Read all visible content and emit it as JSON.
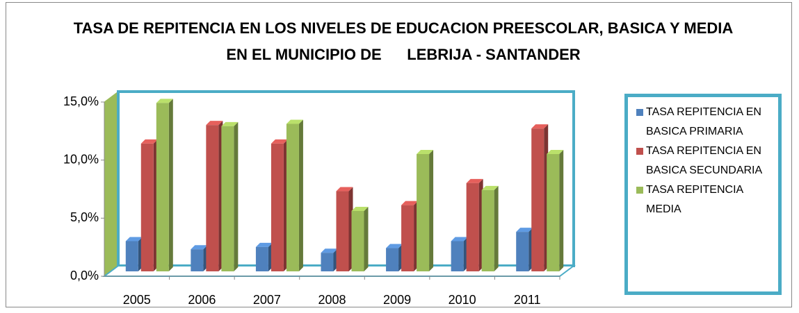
{
  "chart_data": {
    "type": "bar",
    "title": "TASA DE REPITENCIA EN LOS NIVELES DE EDUCACION PREESCOLAR, BASICA Y MEDIA EN EL MUNICIPIO DE      LEBRIJA - SANTANDER",
    "categories": [
      "2005",
      "2006",
      "2007",
      "2008",
      "2009",
      "2010",
      "2011"
    ],
    "series": [
      {
        "name": "TASA REPITENCIA EN BASICA PRIMARIA",
        "color": "#4f81bd",
        "values": [
          2.6,
          1.9,
          2.1,
          1.6,
          2.0,
          2.6,
          3.4
        ]
      },
      {
        "name": "TASA REPITENCIA EN BASICA SECUNDARIA",
        "color": "#c0504d",
        "values": [
          11.0,
          12.6,
          11.0,
          6.9,
          5.7,
          7.6,
          12.3
        ]
      },
      {
        "name": "TASA REPITENCIA MEDIA",
        "color": "#9bbb59",
        "values": [
          14.5,
          12.5,
          12.7,
          5.2,
          10.1,
          7.0,
          10.1
        ]
      }
    ],
    "ylim": [
      0,
      15
    ],
    "yticks": [
      {
        "value": 0,
        "label": "0,0%"
      },
      {
        "value": 5,
        "label": "5,0%"
      },
      {
        "value": 10,
        "label": "10,0%"
      },
      {
        "value": 15,
        "label": "15,0%"
      }
    ],
    "grid": false
  }
}
